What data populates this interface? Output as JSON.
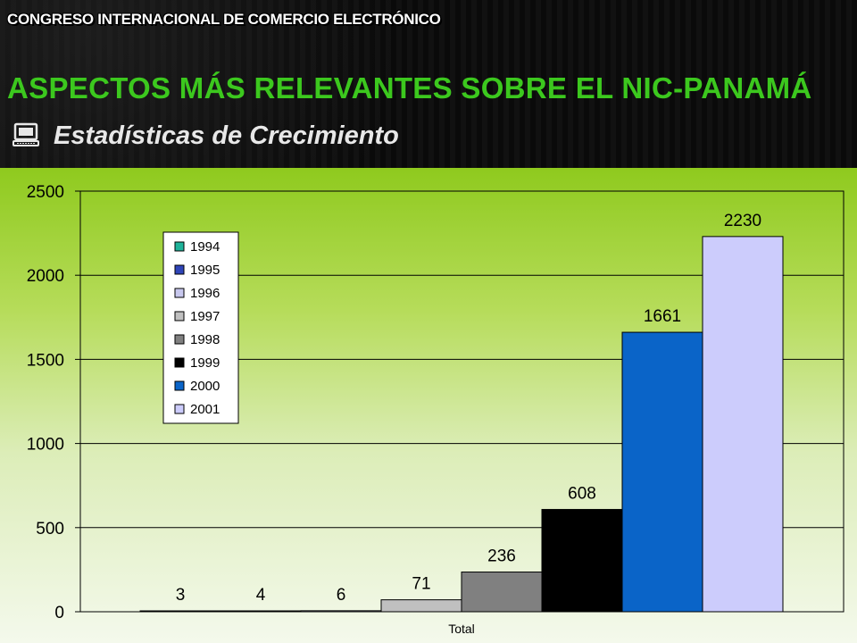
{
  "header": {
    "title": "CONGRESO INTERNACIONAL DE COMERCIO ELECTRÓNICO"
  },
  "slide": {
    "title": "ASPECTOS MÁS RELEVANTES SOBRE EL NIC-PANAMÁ",
    "subtitle": "Estadísticas de Crecimiento",
    "bullet_icon": "computer-icon"
  },
  "chart_data": {
    "type": "bar",
    "categories": [
      "Total"
    ],
    "series": [
      {
        "name": "1994",
        "values": [
          3
        ],
        "color": "#1fb39a"
      },
      {
        "name": "1995",
        "values": [
          4
        ],
        "color": "#2f45b8"
      },
      {
        "name": "1996",
        "values": [
          6
        ],
        "color": "#c8c8ee"
      },
      {
        "name": "1997",
        "values": [
          71
        ],
        "color": "#c0c0c0"
      },
      {
        "name": "1998",
        "values": [
          236
        ],
        "color": "#808080"
      },
      {
        "name": "1999",
        "values": [
          608
        ],
        "color": "#000000"
      },
      {
        "name": "2000",
        "values": [
          1661
        ],
        "color": "#0a64c8"
      },
      {
        "name": "2001",
        "values": [
          2230
        ],
        "color": "#ccccfc"
      }
    ],
    "ylim": [
      0,
      2500
    ],
    "yticks": [
      0,
      500,
      1000,
      1500,
      2000,
      2500
    ],
    "grid": true,
    "legend_position": "top-left",
    "title": "",
    "xlabel": "",
    "ylabel": ""
  }
}
